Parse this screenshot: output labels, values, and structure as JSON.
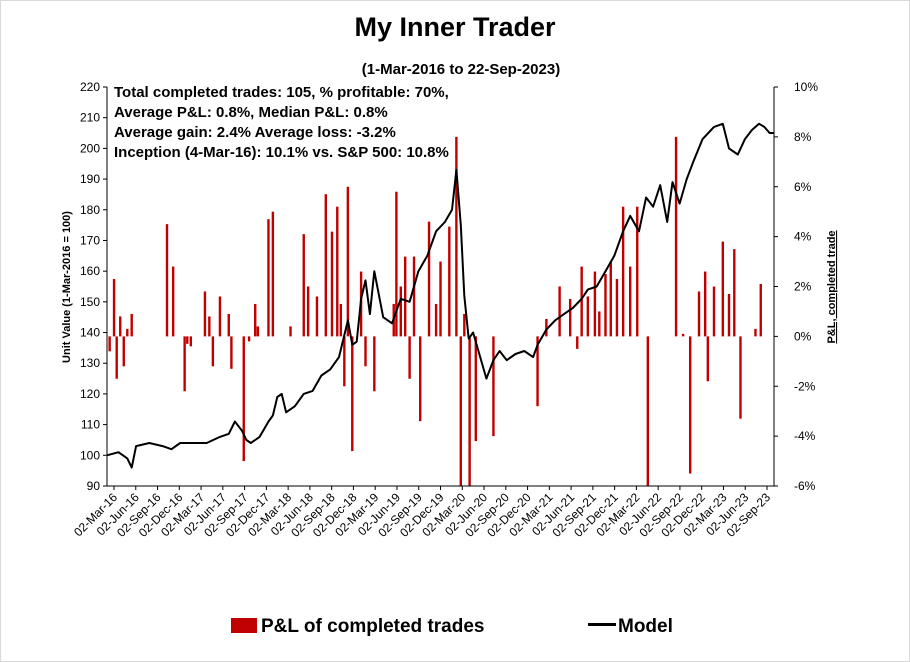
{
  "chart_data": {
    "type": "bar+line",
    "title": "My Inner Trader",
    "subtitle": "(1-Mar-2016 to 22-Sep-2023)",
    "annotations": [
      "Total completed trades: 105, % profitable: 70%,",
      "Average P&L: 0.8%, Median P&L: 0.8%",
      "Average gain: 2.4% Average loss: -3.2%",
      "Inception (4-Mar-16): 10.1% vs. S&P 500: 10.8%"
    ],
    "ylabel_left": "Unit Value (1-Mar-2016 = 100)",
    "ylabel_right": "P&L, completed trade",
    "ylim_left": [
      90,
      220
    ],
    "ylim_right": [
      -6,
      10
    ],
    "y_ticks_left": [
      "90",
      "100",
      "110",
      "120",
      "130",
      "140",
      "150",
      "160",
      "170",
      "180",
      "190",
      "200",
      "210",
      "220"
    ],
    "y_ticks_right": [
      "-6%",
      "-4%",
      "-2%",
      "0%",
      "2%",
      "4%",
      "6%",
      "8%",
      "10%"
    ],
    "x_ticks": [
      "02-Mar-16",
      "02-Jun-16",
      "02-Sep-16",
      "02-Dec-16",
      "02-Mar-17",
      "02-Jun-17",
      "02-Sep-17",
      "02-Dec-17",
      "02-Mar-18",
      "02-Jun-18",
      "02-Sep-18",
      "02-Dec-18",
      "02-Mar-19",
      "02-Jun-19",
      "02-Sep-19",
      "02-Dec-19",
      "02-Mar-20",
      "02-Jun-20",
      "02-Sep-20",
      "02-Dec-20",
      "02-Mar-21",
      "02-Jun-21",
      "02-Sep-21",
      "02-Dec-21",
      "02-Mar-22",
      "02-Jun-22",
      "02-Sep-22",
      "02-Dec-22",
      "02-Mar-23",
      "02-Jun-23",
      "02-Sep-23"
    ],
    "x_domain_years": [
      2016.17,
      2023.73
    ],
    "series": [
      {
        "name": "Model",
        "axis": "left",
        "color": "#000000",
        "points": [
          [
            2016.17,
            100
          ],
          [
            2016.3,
            101
          ],
          [
            2016.4,
            99
          ],
          [
            2016.45,
            96
          ],
          [
            2016.5,
            103
          ],
          [
            2016.65,
            104
          ],
          [
            2016.8,
            103
          ],
          [
            2016.9,
            102
          ],
          [
            2017.0,
            104
          ],
          [
            2017.15,
            104
          ],
          [
            2017.3,
            104
          ],
          [
            2017.45,
            106
          ],
          [
            2017.55,
            107
          ],
          [
            2017.62,
            111
          ],
          [
            2017.7,
            108
          ],
          [
            2017.75,
            105
          ],
          [
            2017.8,
            104
          ],
          [
            2017.9,
            106
          ],
          [
            2018.0,
            111
          ],
          [
            2018.05,
            113
          ],
          [
            2018.1,
            119
          ],
          [
            2018.15,
            120
          ],
          [
            2018.2,
            114
          ],
          [
            2018.3,
            116
          ],
          [
            2018.4,
            120
          ],
          [
            2018.5,
            121
          ],
          [
            2018.6,
            126
          ],
          [
            2018.7,
            128
          ],
          [
            2018.8,
            132
          ],
          [
            2018.9,
            144
          ],
          [
            2018.95,
            136
          ],
          [
            2019.0,
            137
          ],
          [
            2019.05,
            151
          ],
          [
            2019.1,
            157
          ],
          [
            2019.15,
            146
          ],
          [
            2019.2,
            160
          ],
          [
            2019.3,
            145
          ],
          [
            2019.4,
            143
          ],
          [
            2019.5,
            151
          ],
          [
            2019.6,
            150
          ],
          [
            2019.7,
            160
          ],
          [
            2019.8,
            165
          ],
          [
            2019.9,
            173
          ],
          [
            2020.0,
            176
          ],
          [
            2020.08,
            180
          ],
          [
            2020.13,
            193
          ],
          [
            2020.18,
            175
          ],
          [
            2020.22,
            152
          ],
          [
            2020.27,
            138
          ],
          [
            2020.32,
            140
          ],
          [
            2020.4,
            132
          ],
          [
            2020.47,
            125
          ],
          [
            2020.55,
            131
          ],
          [
            2020.62,
            134
          ],
          [
            2020.7,
            131
          ],
          [
            2020.8,
            133
          ],
          [
            2020.9,
            134
          ],
          [
            2021.0,
            132
          ],
          [
            2021.05,
            136
          ],
          [
            2021.15,
            141
          ],
          [
            2021.25,
            144
          ],
          [
            2021.35,
            146
          ],
          [
            2021.45,
            148
          ],
          [
            2021.55,
            151
          ],
          [
            2021.62,
            154
          ],
          [
            2021.72,
            155
          ],
          [
            2021.82,
            160
          ],
          [
            2021.92,
            165
          ],
          [
            2022.02,
            173
          ],
          [
            2022.1,
            178
          ],
          [
            2022.2,
            173
          ],
          [
            2022.28,
            184
          ],
          [
            2022.36,
            181
          ],
          [
            2022.44,
            188
          ],
          [
            2022.52,
            176
          ],
          [
            2022.58,
            189
          ],
          [
            2022.66,
            182
          ],
          [
            2022.74,
            190
          ],
          [
            2022.82,
            196
          ],
          [
            2022.92,
            203
          ],
          [
            2023.05,
            207
          ],
          [
            2023.15,
            208
          ],
          [
            2023.22,
            200
          ],
          [
            2023.32,
            198
          ],
          [
            2023.4,
            203
          ],
          [
            2023.48,
            206
          ],
          [
            2023.56,
            208
          ],
          [
            2023.62,
            207
          ],
          [
            2023.68,
            205
          ],
          [
            2023.73,
            205
          ]
        ]
      },
      {
        "name": "P&L of completed trades",
        "axis": "right",
        "color": "#c00000",
        "points": [
          [
            2016.2,
            -0.6
          ],
          [
            2016.25,
            2.3
          ],
          [
            2016.28,
            -1.7
          ],
          [
            2016.32,
            0.8
          ],
          [
            2016.36,
            -1.2
          ],
          [
            2016.4,
            0.3
          ],
          [
            2016.45,
            0.9
          ],
          [
            2016.85,
            4.5
          ],
          [
            2016.92,
            2.8
          ],
          [
            2017.05,
            -2.2
          ],
          [
            2017.08,
            -0.3
          ],
          [
            2017.12,
            -0.4
          ],
          [
            2017.28,
            1.8
          ],
          [
            2017.33,
            0.8
          ],
          [
            2017.37,
            -1.2
          ],
          [
            2017.45,
            1.6
          ],
          [
            2017.55,
            0.9
          ],
          [
            2017.58,
            -1.3
          ],
          [
            2017.72,
            -5.0
          ],
          [
            2017.78,
            -0.2
          ],
          [
            2017.85,
            1.3
          ],
          [
            2017.88,
            0.4
          ],
          [
            2018.0,
            4.7
          ],
          [
            2018.05,
            5.0
          ],
          [
            2018.25,
            0.4
          ],
          [
            2018.4,
            4.1
          ],
          [
            2018.45,
            2.0
          ],
          [
            2018.55,
            1.6
          ],
          [
            2018.65,
            5.7
          ],
          [
            2018.72,
            4.2
          ],
          [
            2018.78,
            5.2
          ],
          [
            2018.82,
            1.3
          ],
          [
            2018.86,
            -2.0
          ],
          [
            2018.9,
            6.0
          ],
          [
            2018.95,
            -4.6
          ],
          [
            2019.05,
            2.6
          ],
          [
            2019.1,
            -1.2
          ],
          [
            2019.2,
            -2.2
          ],
          [
            2019.42,
            1.3
          ],
          [
            2019.45,
            5.8
          ],
          [
            2019.5,
            2.0
          ],
          [
            2019.55,
            3.2
          ],
          [
            2019.6,
            -1.7
          ],
          [
            2019.65,
            3.2
          ],
          [
            2019.72,
            -3.4
          ],
          [
            2019.82,
            4.6
          ],
          [
            2019.9,
            1.3
          ],
          [
            2019.95,
            3.0
          ],
          [
            2020.05,
            4.4
          ],
          [
            2020.13,
            8.0
          ],
          [
            2020.18,
            -6.0
          ],
          [
            2020.22,
            0.9
          ],
          [
            2020.28,
            -6.0
          ],
          [
            2020.35,
            -4.2
          ],
          [
            2020.55,
            -4.0
          ],
          [
            2021.05,
            -2.8
          ],
          [
            2021.15,
            0.7
          ],
          [
            2021.3,
            2.0
          ],
          [
            2021.42,
            1.5
          ],
          [
            2021.5,
            -0.5
          ],
          [
            2021.55,
            2.8
          ],
          [
            2021.62,
            1.6
          ],
          [
            2021.7,
            2.6
          ],
          [
            2021.75,
            1.0
          ],
          [
            2021.82,
            2.5
          ],
          [
            2021.88,
            3.0
          ],
          [
            2021.95,
            2.3
          ],
          [
            2022.02,
            5.2
          ],
          [
            2022.1,
            2.8
          ],
          [
            2022.18,
            5.2
          ],
          [
            2022.3,
            -6.0
          ],
          [
            2022.62,
            8.0
          ],
          [
            2022.7,
            0.1
          ],
          [
            2022.78,
            -5.5
          ],
          [
            2022.88,
            1.8
          ],
          [
            2022.95,
            2.6
          ],
          [
            2022.98,
            -1.8
          ],
          [
            2023.05,
            2.0
          ],
          [
            2023.15,
            3.8
          ],
          [
            2023.22,
            1.7
          ],
          [
            2023.28,
            3.5
          ],
          [
            2023.35,
            -3.3
          ],
          [
            2023.52,
            0.3
          ],
          [
            2023.58,
            2.1
          ]
        ]
      }
    ],
    "legend": [
      "P&L of completed trades",
      "Model"
    ],
    "legend_placement": "bottom-center",
    "grid": false
  }
}
